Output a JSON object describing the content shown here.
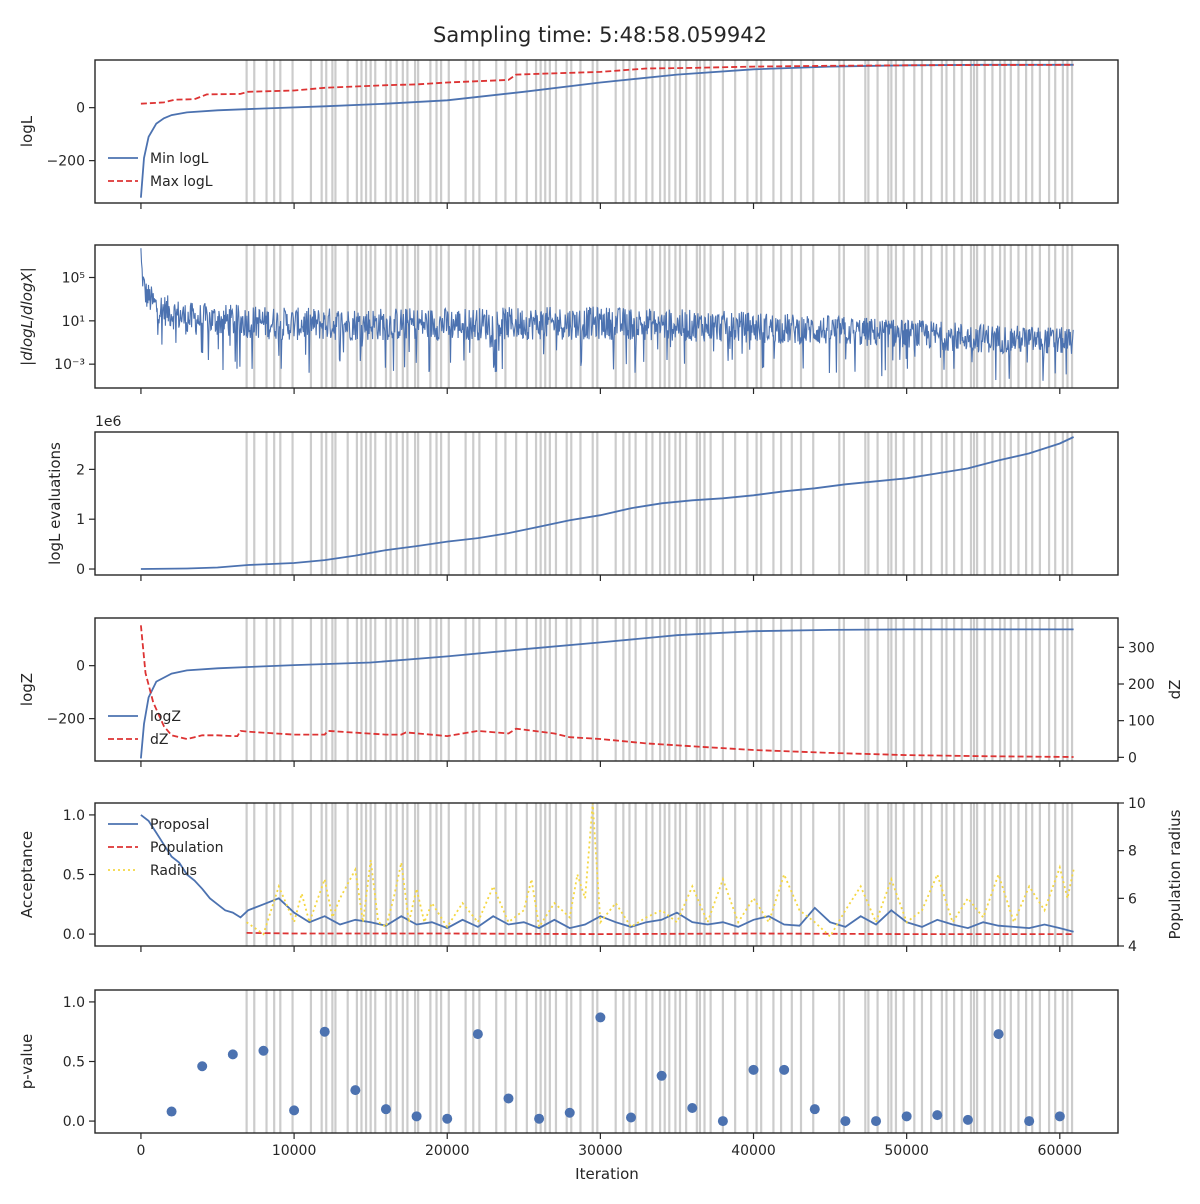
{
  "title": "Sampling time: 5:48:58.059942",
  "x_axis": {
    "label": "Iteration",
    "range": [
      -3000,
      63800
    ],
    "ticks": [
      0,
      10000,
      20000,
      30000,
      40000,
      50000,
      60000
    ]
  },
  "colors": {
    "blue": "#4c72b0",
    "red": "#dd3333",
    "yellow": "#f5d742",
    "band": "#cccccc"
  },
  "bands": [
    6900,
    7400,
    8200,
    8700,
    9100,
    9900,
    11100,
    11800,
    12100,
    12500,
    12700,
    13500,
    14100,
    14400,
    14700,
    15000,
    15300,
    16000,
    16300,
    16700,
    17100,
    17400,
    17900,
    18100,
    18900,
    19300,
    19600,
    20100,
    21200,
    21700,
    22100,
    23200,
    23800,
    24500,
    25200,
    25800,
    26100,
    26400,
    26700,
    27100,
    27800,
    28100,
    28700,
    29500,
    29800,
    31000,
    31500,
    31900,
    32300,
    33000,
    33400,
    33900,
    34200,
    34500,
    34900,
    35200,
    35600,
    36300,
    36500,
    36800,
    37200,
    38000,
    38800,
    39600,
    40200,
    40500,
    41300,
    41800,
    42500,
    43100,
    43900,
    45600,
    45900,
    47300,
    47500,
    48100,
    48800,
    49000,
    49300,
    49800,
    50500,
    51000,
    51600,
    52300,
    52600,
    53100,
    53600,
    54200,
    54400,
    54600,
    55100,
    55600,
    56100,
    56400,
    56800,
    57300,
    57800,
    58200,
    58700,
    59300,
    59700,
    60200,
    60500,
    60800
  ],
  "chart_data": [
    {
      "type": "line",
      "ylabel": "logL",
      "ylim": [
        -360,
        180
      ],
      "yticks": [
        0,
        -200
      ],
      "ytick_labels": [
        "0",
        "−200"
      ],
      "legend_position": "lower-left",
      "series": [
        {
          "name": "Min logL",
          "style": "solid",
          "color": "blue",
          "x": [
            0,
            200,
            500,
            1000,
            1500,
            2000,
            3000,
            5000,
            8000,
            12000,
            16000,
            20000,
            25000,
            30000,
            35000,
            40000,
            45000,
            50000,
            55000,
            60000,
            60900
          ],
          "y": [
            -340,
            -190,
            -110,
            -60,
            -40,
            -28,
            -18,
            -10,
            -3,
            5,
            15,
            28,
            60,
            95,
            125,
            145,
            155,
            160,
            162,
            162,
            162
          ]
        },
        {
          "name": "Max logL",
          "style": "dashed",
          "color": "red",
          "x": [
            0,
            1500,
            2200,
            3500,
            4300,
            6500,
            7000,
            10000,
            12000,
            14000,
            16000,
            18000,
            20000,
            22000,
            24000,
            24500,
            26000,
            30000,
            33000,
            36000,
            40000,
            45000,
            50000,
            55000,
            60900
          ],
          "y": [
            15,
            20,
            30,
            32,
            50,
            52,
            60,
            65,
            75,
            80,
            85,
            88,
            95,
            100,
            105,
            125,
            128,
            135,
            148,
            150,
            155,
            158,
            160,
            161,
            162
          ]
        }
      ]
    },
    {
      "type": "line",
      "ylabel": "|dlogL/dlogX|",
      "yscale": "log",
      "ylim_log10": [
        -5.2,
        8.0
      ],
      "yticks_log10": [
        5,
        1,
        -3
      ],
      "ytick_labels": [
        "10⁵",
        "10¹",
        "10⁻³"
      ],
      "series": [
        {
          "style": "noisy-solid",
          "color": "blue",
          "x": [
            0,
            100,
            300,
            1000,
            3000,
            10000,
            20000,
            30000,
            40000,
            50000,
            55000,
            60900
          ],
          "median_log10": [
            7.0,
            5.0,
            3.5,
            2.3,
            1.2,
            0.7,
            0.7,
            0.8,
            0.4,
            -0.2,
            -0.6,
            -0.9
          ],
          "spread_log10": [
            0.3,
            1.2,
            1.5,
            1.6,
            1.7,
            1.7,
            1.7,
            1.7,
            1.6,
            1.5,
            1.5,
            1.4
          ]
        }
      ]
    },
    {
      "type": "line",
      "ylabel": "logL evaluations",
      "y_offset_label": "1e6",
      "ylim": [
        -0.12,
        2.75
      ],
      "yticks": [
        0,
        1,
        2
      ],
      "ytick_labels": [
        "0",
        "1",
        "2"
      ],
      "series": [
        {
          "style": "solid",
          "color": "blue",
          "x": [
            0,
            3000,
            5000,
            7000,
            10000,
            12000,
            14000,
            16000,
            18000,
            20000,
            22000,
            24000,
            26000,
            28000,
            30000,
            32000,
            34000,
            36000,
            38000,
            40000,
            42000,
            44000,
            46000,
            48000,
            50000,
            52000,
            54000,
            56000,
            58000,
            60000,
            60900
          ],
          "y": [
            0.0,
            0.01,
            0.03,
            0.08,
            0.12,
            0.18,
            0.27,
            0.38,
            0.46,
            0.55,
            0.62,
            0.72,
            0.85,
            0.98,
            1.08,
            1.22,
            1.32,
            1.38,
            1.42,
            1.48,
            1.56,
            1.62,
            1.7,
            1.76,
            1.82,
            1.92,
            2.02,
            2.18,
            2.32,
            2.52,
            2.65
          ]
        }
      ]
    },
    {
      "type": "line",
      "ylabel": "logZ",
      "ylim": [
        -360,
        180
      ],
      "yticks": [
        0,
        -200
      ],
      "ytick_labels": [
        "0",
        "−200"
      ],
      "y2label": "dZ",
      "y2lim": [
        -10,
        380
      ],
      "y2ticks": [
        0,
        100,
        200,
        300
      ],
      "y2tick_labels": [
        "0",
        "100",
        "200",
        "300"
      ],
      "legend_position": "lower-left",
      "series": [
        {
          "name": "logZ",
          "style": "solid",
          "color": "blue",
          "axis": "left",
          "x": [
            0,
            200,
            500,
            1000,
            2000,
            3000,
            5000,
            7000,
            10000,
            15000,
            20000,
            25000,
            30000,
            35000,
            40000,
            45000,
            50000,
            55000,
            60000,
            60900
          ],
          "y": [
            -350,
            -220,
            -120,
            -60,
            -30,
            -18,
            -10,
            -5,
            2,
            12,
            35,
            62,
            88,
            115,
            130,
            135,
            137,
            137,
            137,
            137
          ]
        },
        {
          "name": "dZ",
          "style": "dashed",
          "color": "red",
          "axis": "right",
          "x": [
            0,
            300,
            800,
            1500,
            2000,
            2500,
            3000,
            3500,
            4000,
            5000,
            6000,
            6300,
            6500,
            7000,
            10000,
            12000,
            12200,
            16000,
            17000,
            17300,
            20000,
            22000,
            24000,
            24500,
            27000,
            28000,
            30000,
            33000,
            36000,
            40000,
            45000,
            50000,
            55000,
            60900
          ],
          "y": [
            360,
            230,
            150,
            85,
            60,
            55,
            50,
            55,
            60,
            60,
            58,
            58,
            72,
            70,
            62,
            62,
            72,
            62,
            62,
            68,
            58,
            72,
            65,
            78,
            65,
            55,
            50,
            38,
            30,
            20,
            12,
            6,
            3,
            1
          ]
        }
      ]
    },
    {
      "type": "line",
      "ylabel": "Acceptance",
      "ylim": [
        -0.1,
        1.1
      ],
      "yticks": [
        0,
        0.5,
        1
      ],
      "ytick_labels": [
        "0.0",
        "0.5",
        "1.0"
      ],
      "y2label": "Population radius",
      "y2lim": [
        4,
        10
      ],
      "y2ticks": [
        4,
        6,
        8,
        10
      ],
      "y2tick_labels": [
        "4",
        "6",
        "8",
        "10"
      ],
      "legend_position": "upper-left",
      "series": [
        {
          "name": "Proposal",
          "style": "solid",
          "color": "blue",
          "axis": "left",
          "x": [
            0,
            500,
            1000,
            1500,
            2000,
            2500,
            3000,
            3500,
            4000,
            4500,
            5000,
            5500,
            6000,
            6500,
            7000,
            8000,
            9000,
            10000,
            11000,
            12000,
            13000,
            14000,
            15000,
            16000,
            17000,
            18000,
            19000,
            20000,
            21000,
            22000,
            23000,
            24000,
            25000,
            26000,
            27000,
            28000,
            29000,
            30000,
            31000,
            32000,
            33000,
            34000,
            35000,
            36000,
            37000,
            38000,
            39000,
            40000,
            41000,
            42000,
            43000,
            44000,
            45000,
            46000,
            47000,
            48000,
            49000,
            50000,
            51000,
            52000,
            53000,
            54000,
            55000,
            56000,
            57000,
            58000,
            59000,
            60000,
            60900
          ],
          "y": [
            1.0,
            0.95,
            0.85,
            0.75,
            0.65,
            0.6,
            0.5,
            0.45,
            0.38,
            0.3,
            0.25,
            0.2,
            0.18,
            0.14,
            0.2,
            0.25,
            0.3,
            0.18,
            0.1,
            0.15,
            0.08,
            0.12,
            0.1,
            0.07,
            0.15,
            0.08,
            0.1,
            0.05,
            0.12,
            0.06,
            0.15,
            0.08,
            0.1,
            0.05,
            0.12,
            0.05,
            0.08,
            0.15,
            0.1,
            0.06,
            0.1,
            0.12,
            0.18,
            0.1,
            0.08,
            0.1,
            0.06,
            0.12,
            0.15,
            0.08,
            0.07,
            0.22,
            0.1,
            0.06,
            0.15,
            0.08,
            0.2,
            0.1,
            0.06,
            0.12,
            0.08,
            0.05,
            0.1,
            0.07,
            0.06,
            0.05,
            0.08,
            0.05,
            0.02
          ]
        },
        {
          "name": "Population",
          "style": "dashed",
          "color": "red",
          "axis": "left",
          "x": [
            6900,
            10000,
            20000,
            30000,
            40000,
            50000,
            60900
          ],
          "y": [
            0.01,
            0.005,
            0.005,
            0.0,
            0.005,
            0.0,
            0.0
          ]
        },
        {
          "name": "Radius",
          "style": "dotted",
          "color": "yellow",
          "axis": "right",
          "x": [
            6900,
            8000,
            8500,
            9000,
            10000,
            10500,
            11000,
            12000,
            12500,
            13000,
            14000,
            14500,
            15000,
            15500,
            16000,
            16500,
            17000,
            17500,
            18000,
            18500,
            19000,
            20000,
            21000,
            22000,
            23000,
            24000,
            25000,
            25500,
            26000,
            27000,
            28000,
            28500,
            29000,
            29500,
            30000,
            31000,
            32000,
            33000,
            34000,
            35000,
            36000,
            37000,
            38000,
            39000,
            40000,
            41000,
            42000,
            43000,
            44000,
            45000,
            46000,
            47000,
            48000,
            49000,
            50000,
            51000,
            52000,
            53000,
            54000,
            55000,
            56000,
            57000,
            58000,
            59000,
            60000,
            60500,
            60900
          ],
          "y": [
            5.0,
            4.5,
            5.5,
            6.5,
            5.0,
            6.2,
            5.0,
            6.8,
            5.2,
            6.0,
            7.2,
            5.0,
            7.6,
            5.0,
            4.8,
            6.0,
            7.5,
            5.0,
            6.4,
            5.0,
            5.8,
            4.8,
            5.8,
            5.0,
            6.5,
            5.0,
            5.5,
            6.8,
            4.8,
            5.8,
            5.2,
            7.0,
            6.0,
            10.0,
            5.0,
            5.8,
            4.8,
            5.2,
            5.5,
            5.0,
            6.5,
            5.0,
            6.8,
            5.0,
            6.0,
            5.0,
            7.0,
            5.5,
            5.0,
            4.4,
            5.5,
            6.5,
            5.0,
            6.8,
            5.0,
            5.5,
            7.0,
            5.0,
            6.0,
            5.2,
            7.0,
            5.0,
            6.5,
            5.5,
            7.3,
            6.0,
            7.2
          ]
        }
      ]
    },
    {
      "type": "scatter",
      "ylabel": "p-value",
      "ylim": [
        -0.1,
        1.1
      ],
      "yticks": [
        0,
        0.5,
        1
      ],
      "ytick_labels": [
        "0.0",
        "0.5",
        "1.0"
      ],
      "series": [
        {
          "style": "markers",
          "color": "blue",
          "x": [
            2000,
            4000,
            6000,
            8000,
            10000,
            12000,
            14000,
            16000,
            18000,
            20000,
            22000,
            24000,
            26000,
            28000,
            30000,
            32000,
            34000,
            36000,
            38000,
            40000,
            42000,
            44000,
            46000,
            48000,
            50000,
            52000,
            54000,
            56000,
            58000,
            60000
          ],
          "y": [
            0.08,
            0.46,
            0.56,
            0.59,
            0.09,
            0.75,
            0.26,
            0.1,
            0.04,
            0.02,
            0.73,
            0.19,
            0.02,
            0.07,
            0.87,
            0.03,
            0.38,
            0.11,
            0.0,
            0.43,
            0.43,
            0.1,
            0.0,
            0.0,
            0.04,
            0.05,
            0.01,
            0.73,
            0.0,
            0.04
          ]
        }
      ]
    }
  ]
}
